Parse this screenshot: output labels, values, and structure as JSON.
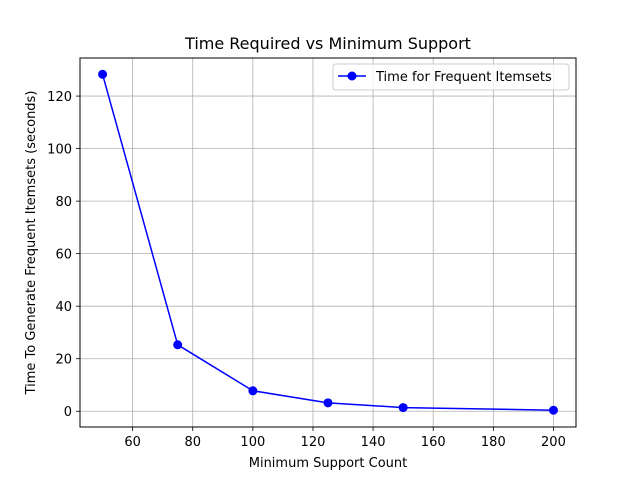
{
  "chart_data": {
    "type": "line",
    "title": "Time Required vs Minimum Support",
    "xlabel": "Minimum Support Count",
    "ylabel": "Time To Generate Frequent Itemsets (seconds)",
    "xlim": [
      42.5,
      207.5
    ],
    "ylim": [
      -6.0,
      134.5
    ],
    "xticks": [
      60,
      80,
      100,
      120,
      140,
      160,
      180,
      200
    ],
    "yticks": [
      0,
      20,
      40,
      60,
      80,
      100,
      120
    ],
    "grid": true,
    "legend_position": "top-right",
    "series": [
      {
        "name": "Time for Frequent Itemsets",
        "color": "#0000ff",
        "marker": "circle",
        "x": [
          50,
          75,
          100,
          125,
          150,
          200
        ],
        "y": [
          128.3,
          25.3,
          7.8,
          3.2,
          1.4,
          0.4
        ]
      }
    ]
  }
}
